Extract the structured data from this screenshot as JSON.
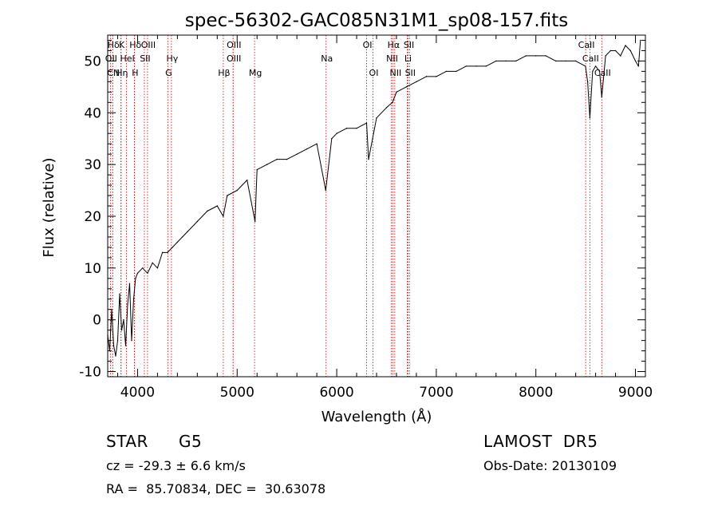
{
  "chart_data": {
    "type": "line",
    "title": "spec-56302-GAC085N31M1_sp08-157.fits",
    "xlabel": "Wavelength (Å)",
    "ylabel": "Flux (relative)",
    "xlim": [
      3700,
      9100
    ],
    "ylim": [
      -11,
      55
    ],
    "x_ticks": [
      4000,
      5000,
      6000,
      7000,
      8000,
      9000
    ],
    "y_ticks": [
      -10,
      0,
      10,
      20,
      30,
      40,
      50
    ],
    "grid": false,
    "line_color": "#000000",
    "marker_color": "#cc0000",
    "series": [
      {
        "x": [
          3700,
          3720,
          3740,
          3760,
          3780,
          3800,
          3820,
          3840,
          3860,
          3880,
          3900,
          3920,
          3940,
          3960,
          3980,
          4000,
          4050,
          4100,
          4150,
          4200,
          4250,
          4300,
          4350,
          4400,
          4450,
          4500,
          4600,
          4700,
          4800,
          4860,
          4900,
          5000,
          5100,
          5180,
          5200,
          5300,
          5400,
          5500,
          5600,
          5700,
          5800,
          5890,
          5950,
          6000,
          6100,
          6200,
          6300,
          6320,
          6400,
          6500,
          6560,
          6600,
          6700,
          6800,
          6900,
          7000,
          7100,
          7200,
          7300,
          7400,
          7500,
          7600,
          7700,
          7800,
          7900,
          8000,
          8100,
          8200,
          8300,
          8400,
          8498,
          8520,
          8542,
          8570,
          8600,
          8640,
          8662,
          8700,
          8750,
          8800,
          8850,
          8900,
          8950,
          9000,
          9030,
          9050
        ],
        "y": [
          -3,
          -6,
          2,
          -5,
          -7,
          -4,
          5,
          -2,
          0,
          -5,
          3,
          7,
          -4,
          4,
          8,
          9,
          10,
          9,
          11,
          10,
          13,
          13,
          14,
          15,
          16,
          17,
          19,
          21,
          22,
          20,
          24,
          25,
          27,
          19,
          29,
          30,
          31,
          31,
          32,
          33,
          34,
          25,
          35,
          36,
          37,
          37,
          38,
          31,
          39,
          41,
          42,
          44,
          45,
          46,
          47,
          47,
          48,
          48,
          49,
          49,
          49,
          50,
          50,
          50,
          51,
          51,
          51,
          50,
          50,
          50,
          49,
          46,
          39,
          48,
          49,
          48,
          43,
          51,
          52,
          52,
          51,
          53,
          52,
          50,
          49,
          54
        ]
      }
    ],
    "line_markers": [
      {
        "name": "Hδ",
        "x": 3750,
        "row": 0
      },
      {
        "name": "K",
        "x": 3833,
        "row": 0
      },
      {
        "name": "Hδ",
        "x": 3970,
        "row": 0
      },
      {
        "name": "OIII",
        "x": 4100,
        "row": 0
      },
      {
        "name": "OIII",
        "x": 4960,
        "row": 0
      },
      {
        "name": "OI",
        "x": 6300,
        "row": 0
      },
      {
        "name": "Hα",
        "x": 6563,
        "row": 0
      },
      {
        "name": "SII",
        "x": 6717,
        "row": 0
      },
      {
        "name": "CaII",
        "x": 8500,
        "row": 0
      },
      {
        "name": "OII",
        "x": 3727,
        "row": 1
      },
      {
        "name": "HeI",
        "x": 3889,
        "row": 1
      },
      {
        "name": "SII",
        "x": 4068,
        "row": 1
      },
      {
        "name": "Hγ",
        "x": 4340,
        "row": 1
      },
      {
        "name": "OIII",
        "x": 4959,
        "row": 1
      },
      {
        "name": "Na",
        "x": 5893,
        "row": 1
      },
      {
        "name": "NII",
        "x": 6548,
        "row": 1
      },
      {
        "name": "Li",
        "x": 6708,
        "row": 1
      },
      {
        "name": "CaII",
        "x": 8542,
        "row": 1
      },
      {
        "name": "CN",
        "x": 3750,
        "row": 2
      },
      {
        "name": "Hη",
        "x": 3835,
        "row": 2
      },
      {
        "name": "H",
        "x": 3968,
        "row": 2
      },
      {
        "name": "G",
        "x": 4304,
        "row": 2
      },
      {
        "name": "Hβ",
        "x": 4861,
        "row": 2
      },
      {
        "name": "Mg",
        "x": 5175,
        "row": 2
      },
      {
        "name": "OI",
        "x": 6364,
        "row": 2
      },
      {
        "name": "NII",
        "x": 6583,
        "row": 2
      },
      {
        "name": "SII",
        "x": 6731,
        "row": 2
      },
      {
        "name": "CaII",
        "x": 8662,
        "row": 2
      }
    ]
  },
  "labels": {
    "object_class": "STAR",
    "subclass": "G5",
    "survey": "LAMOST  DR5",
    "redshift": "cz = -29.3 ± 6.6 km/s",
    "obs_date": "Obs-Date: 20130109",
    "coords": "RA =  85.70834, DEC =  30.63078"
  }
}
